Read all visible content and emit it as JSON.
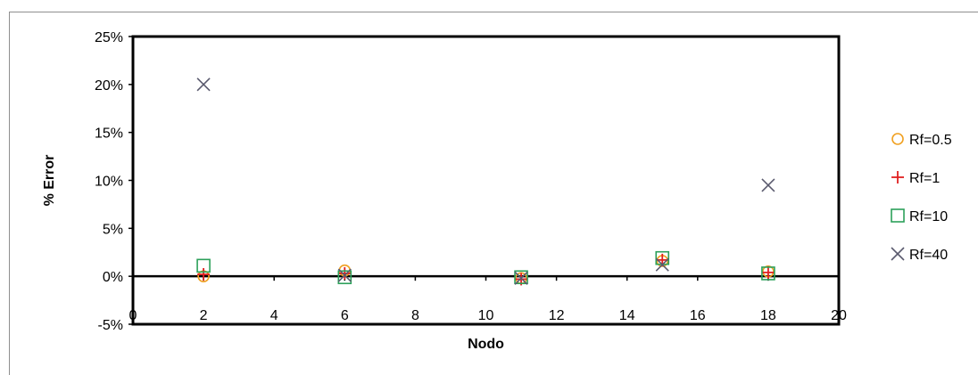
{
  "chart_data": {
    "type": "scatter",
    "xlabel": "Nodo",
    "ylabel": "% Error",
    "xlim": [
      0,
      20
    ],
    "ylim": [
      -5,
      25
    ],
    "x_ticks": [
      0,
      2,
      4,
      6,
      8,
      10,
      12,
      14,
      16,
      18,
      20
    ],
    "y_ticks": [
      -5,
      0,
      5,
      10,
      15,
      20,
      25
    ],
    "y_tick_labels": [
      "-5%",
      "0%",
      "5%",
      "10%",
      "15%",
      "20%",
      "25%"
    ],
    "grid": false,
    "legend_position": "right",
    "series": [
      {
        "name": "Rf=0.5",
        "marker": "circle",
        "color": "#f0a020",
        "points": [
          [
            2,
            0.0
          ],
          [
            6,
            0.6
          ],
          [
            11,
            -0.2
          ],
          [
            15,
            1.6
          ],
          [
            18,
            0.5
          ]
        ]
      },
      {
        "name": "Rf=1",
        "marker": "plus",
        "color": "#e02020",
        "points": [
          [
            2,
            0.2
          ],
          [
            6,
            0.3
          ],
          [
            11,
            -0.3
          ],
          [
            15,
            1.7
          ],
          [
            18,
            0.4
          ]
        ]
      },
      {
        "name": "Rf=10",
        "marker": "square",
        "color": "#2ca05a",
        "points": [
          [
            2,
            1.1
          ],
          [
            6,
            -0.1
          ],
          [
            11,
            -0.1
          ],
          [
            15,
            1.9
          ],
          [
            18,
            0.3
          ]
        ]
      },
      {
        "name": "Rf=40",
        "marker": "x",
        "color": "#5a5a6e",
        "points": [
          [
            2,
            20.0
          ],
          [
            6,
            0.1
          ],
          [
            11,
            -0.2
          ],
          [
            15,
            1.2
          ],
          [
            18,
            9.5
          ]
        ]
      }
    ]
  }
}
